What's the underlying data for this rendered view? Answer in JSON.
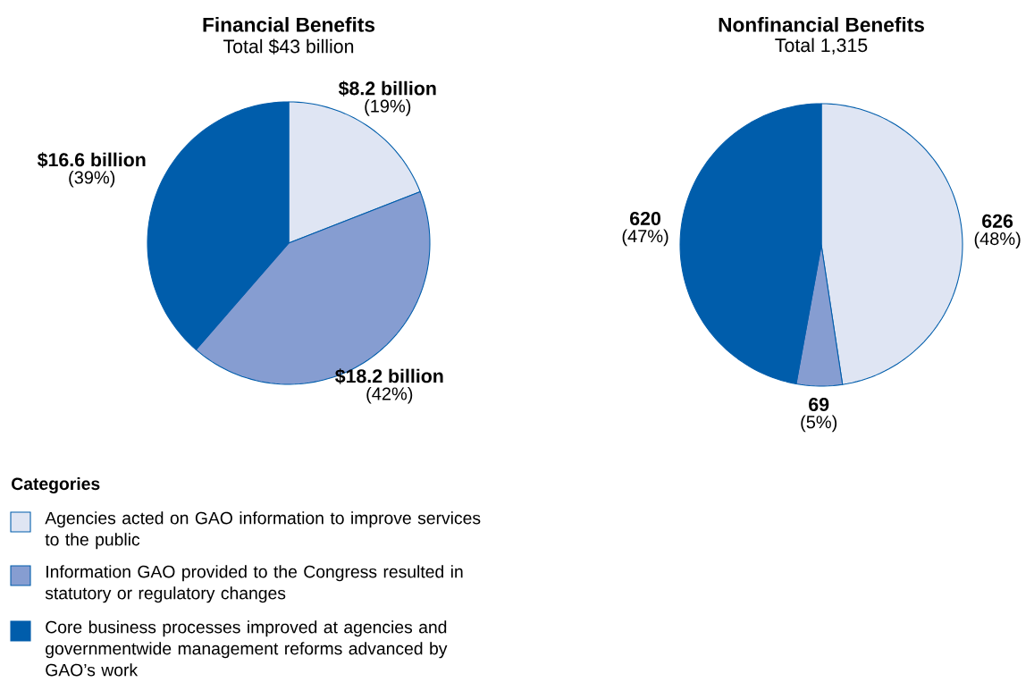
{
  "chart_data": [
    {
      "type": "pie",
      "title": "Financial Benefits",
      "subtitle": "Total $43 billion",
      "categories": [
        "Agencies acted on GAO information to improve services to the public",
        "Information GAO provided to the Congress resulted in statutory or regulatory changes",
        "Core business processes improved at agencies and governmentwide management reforms advanced by GAO’s work"
      ],
      "values": [
        8.2,
        18.2,
        16.6
      ],
      "colors": [
        "#dfe5f3",
        "#869dd1",
        "#005dab"
      ],
      "value_labels": [
        "$8.2 billion",
        "$18.2 billion",
        "$16.6 billion"
      ],
      "annotations": [
        "(19%)",
        "(42%)",
        "(39%)"
      ],
      "legend": "bottom left",
      "legend_title": "Categories"
    },
    {
      "type": "pie",
      "title": "Nonfinancial Benefits",
      "subtitle": "Total 1,315",
      "categories": [
        null,
        null,
        null
      ],
      "values": [
        626,
        69,
        620
      ],
      "colors": [
        "#dfe5f3",
        "#869dd1",
        "#005dab"
      ],
      "value_labels": [
        "626",
        "69",
        "620"
      ],
      "annotations": [
        "(48%)",
        "(5%)",
        "(47%)"
      ]
    }
  ]
}
